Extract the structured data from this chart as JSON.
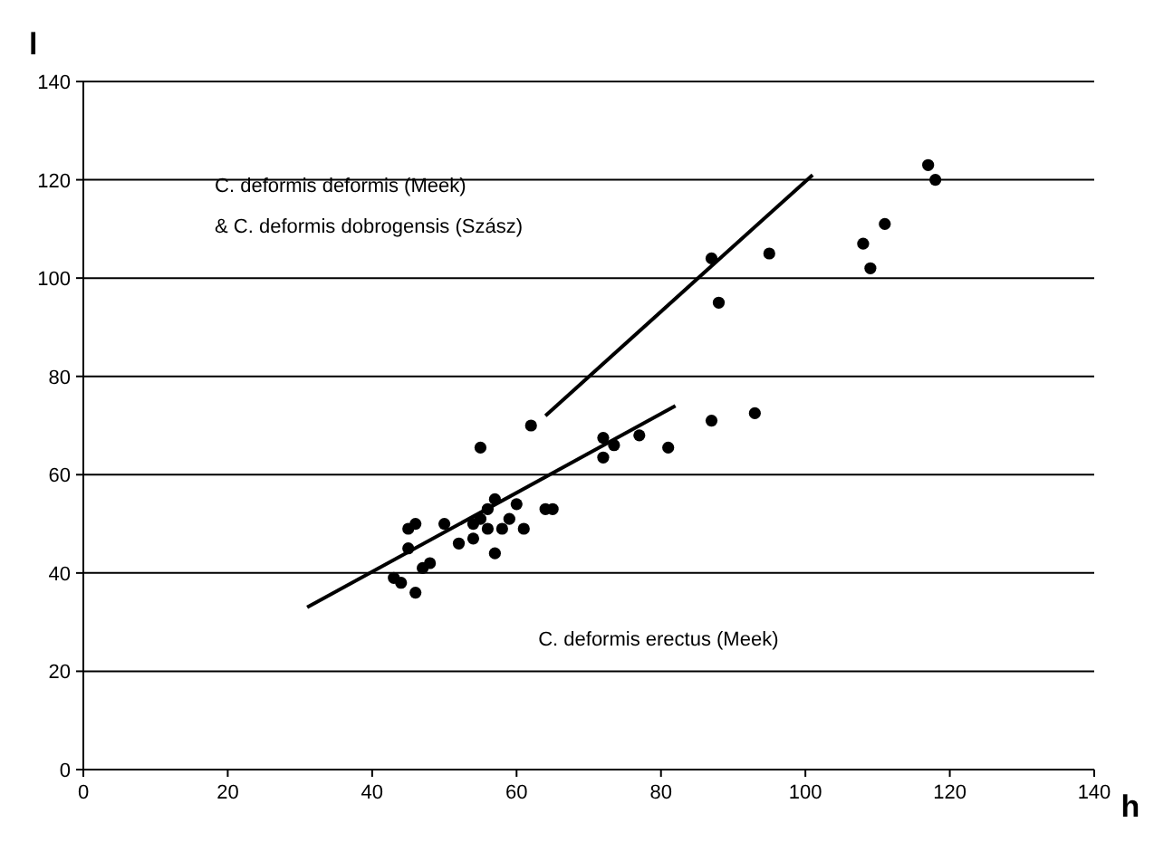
{
  "chart_data": {
    "type": "scatter",
    "xlabel": "h",
    "ylabel": "l",
    "xlim": [
      0,
      140
    ],
    "ylim": [
      0,
      140
    ],
    "xticks": [
      0,
      20,
      40,
      60,
      80,
      100,
      120,
      140
    ],
    "yticks": [
      0,
      20,
      40,
      60,
      80,
      100,
      120,
      140
    ],
    "grid": "y",
    "annotations": [
      "C. deformis deformis (Meek)",
      "& C. deformis dobrogensis (Szász)",
      "C. deformis erectus (Meek)"
    ],
    "series": [
      {
        "marker": "circle",
        "color": "#000000",
        "x": [
          43,
          44,
          45,
          45,
          46,
          46,
          47,
          48,
          50,
          52,
          54,
          54,
          55,
          56,
          56,
          57,
          57,
          58,
          59,
          60,
          61,
          64,
          65,
          55,
          62,
          72,
          72,
          73.5,
          77,
          81,
          87,
          93,
          88,
          87,
          95,
          108,
          109,
          111,
          117,
          118
        ],
        "values": [
          39,
          38,
          45,
          49,
          50,
          36,
          41,
          42,
          50,
          46,
          47,
          50,
          51,
          49,
          53,
          55,
          44,
          49,
          51,
          54,
          49,
          53,
          53,
          65.5,
          70,
          67.5,
          63.5,
          66,
          68,
          65.5,
          71,
          72.5,
          95,
          104,
          105,
          107,
          102,
          111,
          123,
          120
        ]
      },
      {
        "type": "line",
        "color": "#000000",
        "x": [
          31,
          82
        ],
        "values": [
          33,
          74
        ]
      },
      {
        "type": "line",
        "color": "#000000",
        "x": [
          64,
          101
        ],
        "values": [
          72,
          121
        ]
      }
    ]
  }
}
